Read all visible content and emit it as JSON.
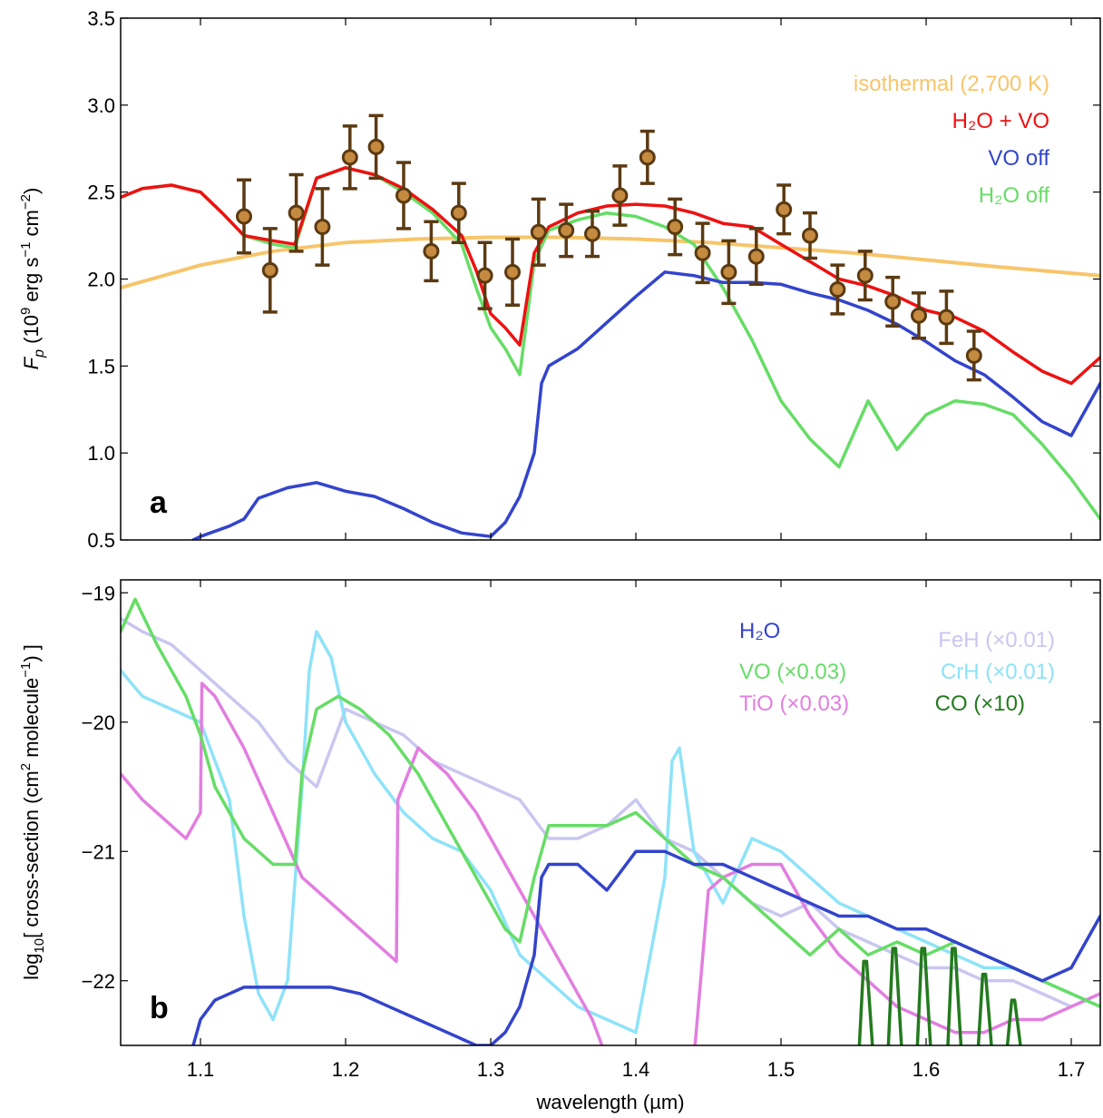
{
  "chart_data": [
    {
      "type": "line",
      "panel_label": "a",
      "ylabel": "F_p (10^9 erg s^-1 cm^-2)",
      "xlim": [
        1.045,
        1.72
      ],
      "ylim": [
        0.5,
        3.5
      ],
      "xticks": [
        "1.1",
        "1.2",
        "1.3",
        "1.4",
        "1.5",
        "1.6",
        "1.7"
      ],
      "yticks": [
        "0.5",
        "1.0",
        "1.5",
        "2.0",
        "2.5",
        "3.0",
        "3.5"
      ],
      "grid": false,
      "legend_position": "top-right",
      "legend": [
        {
          "name": "isothermal (2,700 K)",
          "color": "#f7c56a"
        },
        {
          "name": "H₂O + VO",
          "color": "#ee1111"
        },
        {
          "name": "VO off",
          "color": "#3344cc"
        },
        {
          "name": "H₂O off",
          "color": "#66dd66"
        }
      ],
      "series": [
        {
          "name": "isothermal (2,700 K)",
          "color": "#f7c56a",
          "x": [
            1.045,
            1.1,
            1.15,
            1.2,
            1.25,
            1.3,
            1.35,
            1.4,
            1.45,
            1.5,
            1.55,
            1.6,
            1.65,
            1.72
          ],
          "y": [
            1.95,
            2.08,
            2.16,
            2.21,
            2.23,
            2.24,
            2.24,
            2.23,
            2.21,
            2.18,
            2.15,
            2.11,
            2.07,
            2.02
          ]
        },
        {
          "name": "H₂O + VO",
          "color": "#ee1111",
          "x": [
            1.045,
            1.06,
            1.08,
            1.1,
            1.115,
            1.13,
            1.15,
            1.165,
            1.18,
            1.2,
            1.22,
            1.24,
            1.26,
            1.28,
            1.29,
            1.3,
            1.31,
            1.32,
            1.33,
            1.34,
            1.36,
            1.38,
            1.4,
            1.42,
            1.44,
            1.46,
            1.48,
            1.5,
            1.52,
            1.54,
            1.56,
            1.58,
            1.6,
            1.62,
            1.64,
            1.66,
            1.68,
            1.7,
            1.72
          ],
          "y": [
            2.47,
            2.52,
            2.54,
            2.5,
            2.38,
            2.25,
            2.22,
            2.2,
            2.58,
            2.64,
            2.6,
            2.52,
            2.4,
            2.25,
            2.05,
            1.8,
            1.72,
            1.62,
            2.15,
            2.3,
            2.38,
            2.42,
            2.43,
            2.42,
            2.38,
            2.32,
            2.3,
            2.2,
            2.1,
            2.0,
            1.96,
            1.9,
            1.82,
            1.78,
            1.7,
            1.58,
            1.47,
            1.4,
            1.55
          ]
        },
        {
          "name": "VO off",
          "color": "#3344cc",
          "x": [
            1.095,
            1.1,
            1.12,
            1.13,
            1.14,
            1.16,
            1.18,
            1.2,
            1.22,
            1.24,
            1.26,
            1.28,
            1.3,
            1.31,
            1.32,
            1.33,
            1.335,
            1.34,
            1.36,
            1.38,
            1.4,
            1.42,
            1.44,
            1.46,
            1.48,
            1.5,
            1.52,
            1.54,
            1.56,
            1.58,
            1.6,
            1.62,
            1.64,
            1.66,
            1.68,
            1.7,
            1.72
          ],
          "y": [
            0.5,
            0.52,
            0.58,
            0.62,
            0.74,
            0.8,
            0.83,
            0.78,
            0.75,
            0.68,
            0.6,
            0.54,
            0.52,
            0.6,
            0.75,
            1.0,
            1.4,
            1.5,
            1.6,
            1.75,
            1.9,
            2.04,
            2.02,
            1.98,
            1.98,
            1.97,
            1.92,
            1.88,
            1.82,
            1.74,
            1.64,
            1.53,
            1.45,
            1.32,
            1.18,
            1.1,
            1.4
          ]
        },
        {
          "name": "H₂O off",
          "color": "#66dd66",
          "x": [
            1.045,
            1.06,
            1.08,
            1.1,
            1.115,
            1.13,
            1.15,
            1.165,
            1.18,
            1.2,
            1.22,
            1.24,
            1.26,
            1.28,
            1.29,
            1.3,
            1.31,
            1.32,
            1.33,
            1.34,
            1.36,
            1.38,
            1.4,
            1.42,
            1.44,
            1.46,
            1.48,
            1.5,
            1.52,
            1.54,
            1.56,
            1.58,
            1.6,
            1.62,
            1.64,
            1.66,
            1.68,
            1.7,
            1.72
          ],
          "y": [
            2.47,
            2.52,
            2.54,
            2.5,
            2.38,
            2.25,
            2.2,
            2.18,
            2.58,
            2.64,
            2.6,
            2.5,
            2.38,
            2.2,
            1.95,
            1.72,
            1.6,
            1.45,
            2.1,
            2.28,
            2.34,
            2.38,
            2.36,
            2.3,
            2.2,
            1.95,
            1.65,
            1.3,
            1.08,
            0.92,
            1.3,
            1.02,
            1.22,
            1.3,
            1.28,
            1.22,
            1.05,
            0.85,
            0.62
          ]
        }
      ],
      "data_points": {
        "color": "#8b5a2b",
        "x": [
          1.13,
          1.148,
          1.166,
          1.184,
          1.203,
          1.221,
          1.24,
          1.259,
          1.278,
          1.296,
          1.315,
          1.333,
          1.352,
          1.37,
          1.389,
          1.408,
          1.427,
          1.446,
          1.464,
          1.483,
          1.502,
          1.52,
          1.539,
          1.558,
          1.577,
          1.595,
          1.614,
          1.633
        ],
        "y": [
          2.36,
          2.05,
          2.38,
          2.3,
          2.7,
          2.76,
          2.48,
          2.16,
          2.38,
          2.02,
          2.04,
          2.27,
          2.28,
          2.26,
          2.48,
          2.7,
          2.3,
          2.15,
          2.04,
          2.13,
          2.4,
          2.25,
          1.94,
          2.02,
          1.87,
          1.79,
          1.78,
          1.56
        ],
        "err": [
          0.21,
          0.24,
          0.22,
          0.22,
          0.18,
          0.18,
          0.19,
          0.17,
          0.17,
          0.19,
          0.19,
          0.19,
          0.15,
          0.13,
          0.17,
          0.15,
          0.16,
          0.17,
          0.18,
          0.16,
          0.14,
          0.13,
          0.14,
          0.14,
          0.14,
          0.13,
          0.15,
          0.14
        ]
      }
    },
    {
      "type": "line",
      "panel_label": "b",
      "ylabel": "log10 [ cross-section (cm² molecule⁻¹) ]",
      "xlabel": "wavelength (µm)",
      "xlim": [
        1.045,
        1.72
      ],
      "ylim": [
        -22.5,
        -18.9
      ],
      "xticks": [
        "1.1",
        "1.2",
        "1.3",
        "1.4",
        "1.5",
        "1.6",
        "1.7"
      ],
      "yticks": [
        "−19",
        "−20",
        "−21",
        "−22"
      ],
      "grid": false,
      "legend_position": "top-right",
      "legend": [
        {
          "name": "H₂O",
          "color": "#3344cc"
        },
        {
          "name": "VO (×0.03)",
          "color": "#66dd66"
        },
        {
          "name": "TiO (×0.03)",
          "color": "#e27ee0"
        },
        {
          "name": "FeH (×0.01)",
          "color": "#c9c7f0"
        },
        {
          "name": "CrH (×0.01)",
          "color": "#8ee3f8"
        },
        {
          "name": "CO (×10)",
          "color": "#237a1e"
        }
      ],
      "series": [
        {
          "name": "FeH (×0.01)",
          "color": "#c9c7f0",
          "x": [
            1.045,
            1.06,
            1.08,
            1.1,
            1.12,
            1.14,
            1.16,
            1.18,
            1.2,
            1.22,
            1.24,
            1.26,
            1.28,
            1.3,
            1.32,
            1.34,
            1.36,
            1.38,
            1.4,
            1.42,
            1.44,
            1.46,
            1.48,
            1.5,
            1.52,
            1.54,
            1.56,
            1.58,
            1.6,
            1.62,
            1.64,
            1.66,
            1.68,
            1.7,
            1.72
          ],
          "y": [
            -19.2,
            -19.3,
            -19.4,
            -19.6,
            -19.8,
            -20.0,
            -20.3,
            -20.5,
            -19.9,
            -20.0,
            -20.1,
            -20.3,
            -20.4,
            -20.5,
            -20.6,
            -20.9,
            -20.9,
            -20.8,
            -20.6,
            -20.9,
            -21.0,
            -21.2,
            -21.4,
            -21.5,
            -21.4,
            -21.6,
            -21.7,
            -21.8,
            -21.9,
            -21.9,
            -22.0,
            -22.0,
            -22.1,
            -22.2,
            -22.1
          ]
        },
        {
          "name": "CrH (×0.01)",
          "color": "#8ee3f8",
          "x": [
            1.045,
            1.06,
            1.08,
            1.1,
            1.12,
            1.13,
            1.14,
            1.15,
            1.16,
            1.17,
            1.175,
            1.18,
            1.19,
            1.2,
            1.22,
            1.24,
            1.26,
            1.28,
            1.3,
            1.32,
            1.34,
            1.36,
            1.38,
            1.4,
            1.42,
            1.425,
            1.43,
            1.44,
            1.46,
            1.48,
            1.5,
            1.52,
            1.54,
            1.56,
            1.58,
            1.6,
            1.62,
            1.64,
            1.66,
            1.68,
            1.7,
            1.72
          ],
          "y": [
            -19.6,
            -19.8,
            -19.9,
            -20.0,
            -20.6,
            -21.5,
            -22.1,
            -22.3,
            -22.0,
            -20.5,
            -19.6,
            -19.3,
            -19.5,
            -20.0,
            -20.4,
            -20.7,
            -20.9,
            -21.0,
            -21.3,
            -21.8,
            -22.0,
            -22.2,
            -22.3,
            -22.4,
            -21.2,
            -20.3,
            -20.2,
            -21.0,
            -21.4,
            -20.9,
            -21.0,
            -21.2,
            -21.4,
            -21.5,
            -21.6,
            -21.7,
            -21.8,
            -21.9,
            -21.9,
            -22.0,
            -22.1,
            -22.2
          ]
        },
        {
          "name": "TiO (×0.03)",
          "color": "#e27ee0",
          "x": [
            1.045,
            1.06,
            1.08,
            1.09,
            1.1,
            1.101,
            1.11,
            1.13,
            1.15,
            1.17,
            1.19,
            1.21,
            1.23,
            1.235,
            1.236,
            1.25,
            1.27,
            1.29,
            1.31,
            1.33,
            1.35,
            1.37,
            1.38,
            1.4,
            1.42,
            1.44,
            1.45,
            1.46,
            1.48,
            1.5,
            1.52,
            1.54,
            1.56,
            1.58,
            1.6,
            1.62,
            1.64,
            1.66,
            1.68,
            1.7,
            1.72
          ],
          "y": [
            -20.4,
            -20.6,
            -20.8,
            -20.9,
            -20.7,
            -19.7,
            -19.8,
            -20.2,
            -20.7,
            -21.2,
            -21.4,
            -21.6,
            -21.8,
            -21.85,
            -20.6,
            -20.2,
            -20.4,
            -20.7,
            -21.1,
            -21.5,
            -21.9,
            -22.3,
            -22.6,
            -22.8,
            -22.8,
            -22.6,
            -21.3,
            -21.2,
            -21.1,
            -21.1,
            -21.5,
            -21.8,
            -22.0,
            -22.2,
            -22.3,
            -22.4,
            -22.4,
            -22.3,
            -22.3,
            -22.2,
            -22.1
          ]
        },
        {
          "name": "VO (×0.03)",
          "color": "#66dd66",
          "x": [
            1.045,
            1.055,
            1.07,
            1.09,
            1.1,
            1.11,
            1.13,
            1.15,
            1.165,
            1.17,
            1.18,
            1.195,
            1.21,
            1.23,
            1.25,
            1.27,
            1.29,
            1.31,
            1.32,
            1.33,
            1.34,
            1.36,
            1.38,
            1.4,
            1.42,
            1.44,
            1.46,
            1.48,
            1.5,
            1.52,
            1.54,
            1.56,
            1.58,
            1.6,
            1.62,
            1.64,
            1.66,
            1.68,
            1.7,
            1.72
          ],
          "y": [
            -19.3,
            -19.05,
            -19.4,
            -19.8,
            -20.1,
            -20.5,
            -20.9,
            -21.1,
            -21.1,
            -20.4,
            -19.9,
            -19.8,
            -19.9,
            -20.1,
            -20.4,
            -20.8,
            -21.2,
            -21.6,
            -21.7,
            -21.2,
            -20.8,
            -20.8,
            -20.8,
            -20.7,
            -20.9,
            -21.1,
            -21.2,
            -21.4,
            -21.6,
            -21.8,
            -21.6,
            -21.8,
            -21.7,
            -21.8,
            -21.7,
            -21.8,
            -21.9,
            -22.0,
            -22.1,
            -22.2
          ]
        },
        {
          "name": "H₂O",
          "color": "#3344cc",
          "x": [
            1.095,
            1.1,
            1.11,
            1.13,
            1.15,
            1.17,
            1.19,
            1.21,
            1.23,
            1.25,
            1.27,
            1.29,
            1.3,
            1.31,
            1.32,
            1.33,
            1.335,
            1.34,
            1.36,
            1.38,
            1.4,
            1.42,
            1.44,
            1.46,
            1.48,
            1.5,
            1.52,
            1.54,
            1.56,
            1.58,
            1.6,
            1.62,
            1.64,
            1.66,
            1.68,
            1.7,
            1.72
          ],
          "y": [
            -22.5,
            -22.3,
            -22.15,
            -22.05,
            -22.05,
            -22.05,
            -22.05,
            -22.1,
            -22.2,
            -22.3,
            -22.4,
            -22.5,
            -22.5,
            -22.4,
            -22.2,
            -21.8,
            -21.2,
            -21.1,
            -21.1,
            -21.3,
            -21.0,
            -21.0,
            -21.1,
            -21.1,
            -21.2,
            -21.3,
            -21.4,
            -21.5,
            -21.5,
            -21.6,
            -21.6,
            -21.7,
            -21.8,
            -21.9,
            -22.0,
            -21.9,
            -21.5
          ]
        },
        {
          "name": "CO (×10)",
          "color": "#237a1e",
          "peaks": [
            1.558,
            1.578,
            1.598,
            1.619,
            1.64,
            1.66
          ],
          "peak_y": [
            -21.85,
            -21.75,
            -21.75,
            -21.75,
            -21.95,
            -22.15
          ],
          "floor": -22.5
        }
      ]
    }
  ]
}
